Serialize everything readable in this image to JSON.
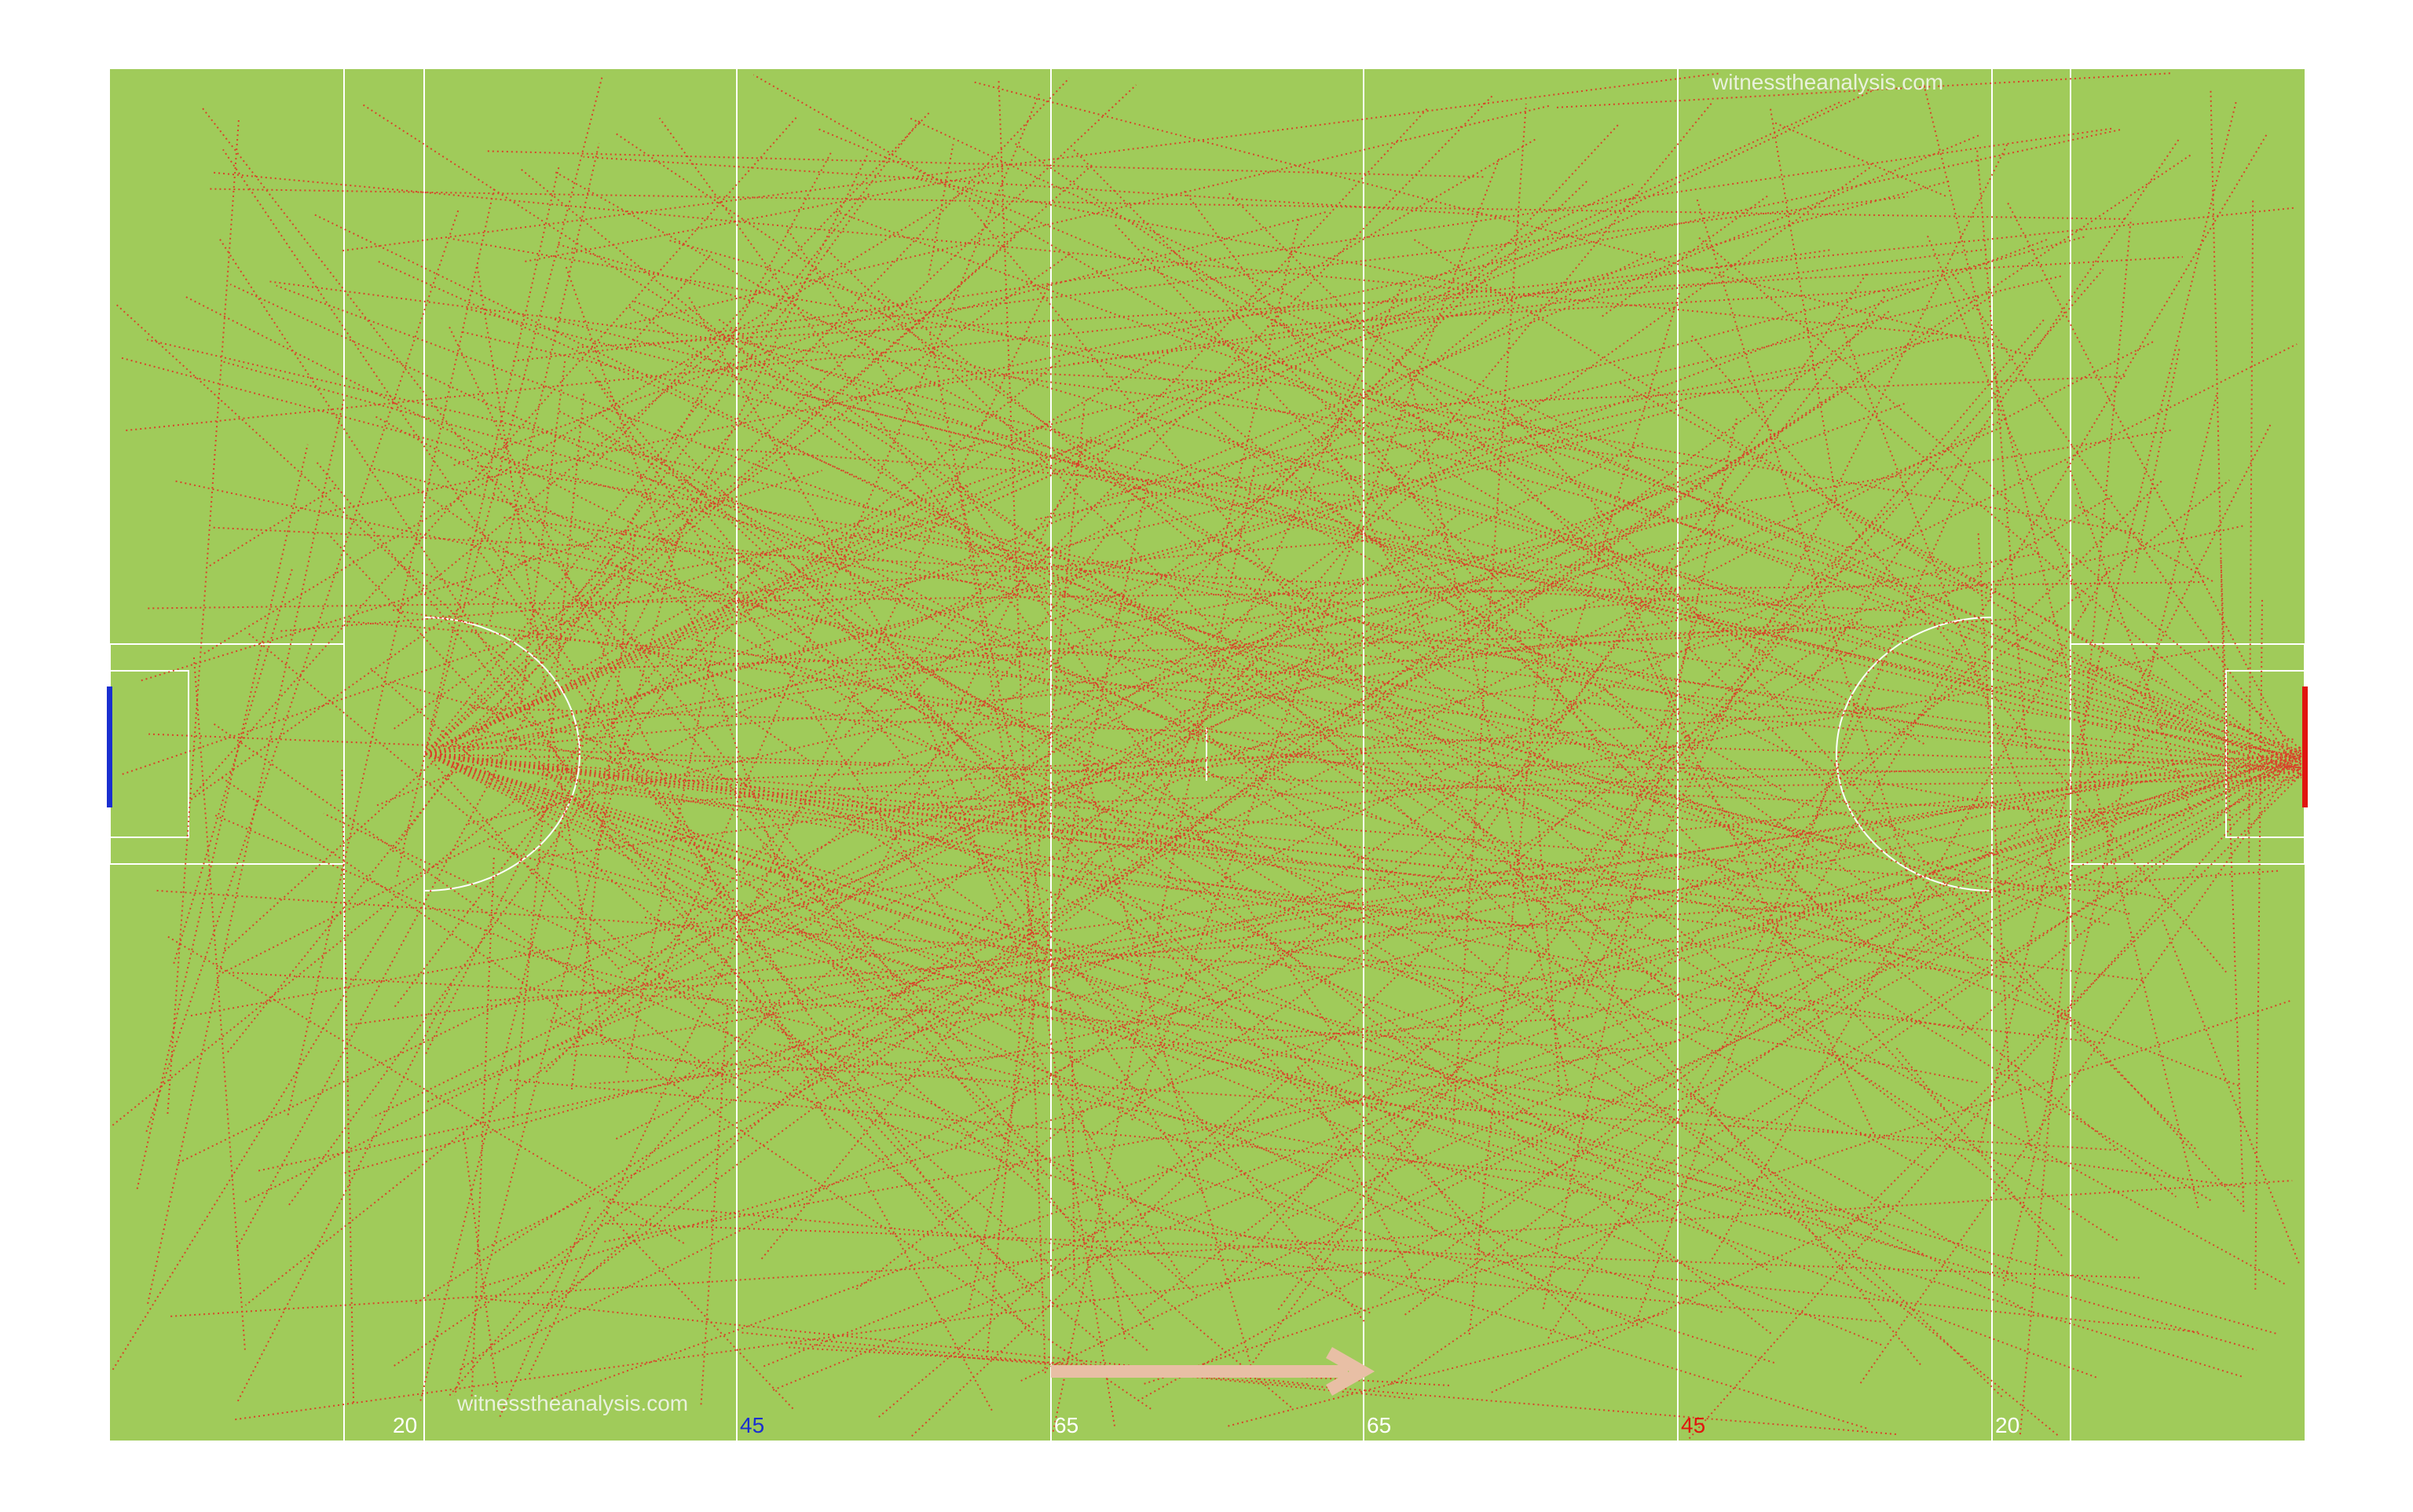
{
  "pitch": {
    "colors": {
      "grass": "#a0cb5a",
      "lines": "#ffffff",
      "passes": "#d8432a",
      "direction_arrow": "#e8bfa5",
      "blue_team": "#1a2fd0",
      "red_team": "#e0150f",
      "label_default": "#ffffff"
    },
    "watermark_top": "witnesstheanalysis.com",
    "watermark_bottom": "witnesstheanalysis.com",
    "line_labels": [
      {
        "text": "20",
        "color": "white"
      },
      {
        "text": "45",
        "color": "blue"
      },
      {
        "text": "65",
        "color": "white"
      },
      {
        "text": "65",
        "color": "white"
      },
      {
        "text": "45",
        "color": "red"
      },
      {
        "text": "20",
        "color": "white"
      }
    ],
    "attacking_direction": "left-to-right"
  }
}
